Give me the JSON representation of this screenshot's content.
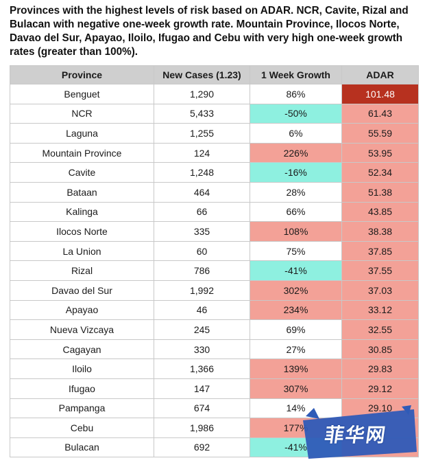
{
  "title": "Provinces with the highest levels of risk based on ADAR. NCR, Cavite, Rizal and Bulacan with negative one-week growth rate. Mountain Province, Ilocos Norte, Davao del Sur, Apayao, Iloilo, Ifugao and Cebu with very high one-week growth rates (greater than 100%).",
  "table": {
    "headers": [
      "Province",
      "New Cases (1.23)",
      "1 Week Growth",
      "ADAR"
    ],
    "rows": [
      {
        "province": "Benguet",
        "cases": "1,290",
        "growth": "86%",
        "adar": "101.48",
        "growth_level": "neutral",
        "adar_level": "very_high"
      },
      {
        "province": "NCR",
        "cases": "5,433",
        "growth": "-50%",
        "adar": "61.43",
        "growth_level": "negative",
        "adar_level": "high"
      },
      {
        "province": "Laguna",
        "cases": "1,255",
        "growth": "6%",
        "adar": "55.59",
        "growth_level": "neutral",
        "adar_level": "high"
      },
      {
        "province": "Mountain Province",
        "cases": "124",
        "growth": "226%",
        "adar": "53.95",
        "growth_level": "high",
        "adar_level": "high"
      },
      {
        "province": "Cavite",
        "cases": "1,248",
        "growth": "-16%",
        "adar": "52.34",
        "growth_level": "negative",
        "adar_level": "high"
      },
      {
        "province": "Bataan",
        "cases": "464",
        "growth": "28%",
        "adar": "51.38",
        "growth_level": "neutral",
        "adar_level": "high"
      },
      {
        "province": "Kalinga",
        "cases": "66",
        "growth": "66%",
        "adar": "43.85",
        "growth_level": "neutral",
        "adar_level": "high"
      },
      {
        "province": "Ilocos Norte",
        "cases": "335",
        "growth": "108%",
        "adar": "38.38",
        "growth_level": "high",
        "adar_level": "high"
      },
      {
        "province": "La Union",
        "cases": "60",
        "growth": "75%",
        "adar": "37.85",
        "growth_level": "neutral",
        "adar_level": "high"
      },
      {
        "province": "Rizal",
        "cases": "786",
        "growth": "-41%",
        "adar": "37.55",
        "growth_level": "negative",
        "adar_level": "high"
      },
      {
        "province": "Davao del Sur",
        "cases": "1,992",
        "growth": "302%",
        "adar": "37.03",
        "growth_level": "high",
        "adar_level": "high"
      },
      {
        "province": "Apayao",
        "cases": "46",
        "growth": "234%",
        "adar": "33.12",
        "growth_level": "high",
        "adar_level": "high"
      },
      {
        "province": "Nueva Vizcaya",
        "cases": "245",
        "growth": "69%",
        "adar": "32.55",
        "growth_level": "neutral",
        "adar_level": "high"
      },
      {
        "province": "Cagayan",
        "cases": "330",
        "growth": "27%",
        "adar": "30.85",
        "growth_level": "neutral",
        "adar_level": "high"
      },
      {
        "province": "Iloilo",
        "cases": "1,366",
        "growth": "139%",
        "adar": "29.83",
        "growth_level": "high",
        "adar_level": "high"
      },
      {
        "province": "Ifugao",
        "cases": "147",
        "growth": "307%",
        "adar": "29.12",
        "growth_level": "high",
        "adar_level": "high"
      },
      {
        "province": "Pampanga",
        "cases": "674",
        "growth": "14%",
        "adar": "29.10",
        "growth_level": "neutral",
        "adar_level": "high"
      },
      {
        "province": "Cebu",
        "cases": "1,986",
        "growth": "177%",
        "adar": "",
        "growth_level": "high",
        "adar_level": "high"
      },
      {
        "province": "Bulacan",
        "cases": "692",
        "growth": "-41%",
        "adar": "",
        "growth_level": "negative",
        "adar_level": "high"
      }
    ]
  },
  "colors": {
    "neutral": "#ffffff",
    "negative": "#8ef0e0",
    "high": "#f3a197",
    "very_high": "#b7311f",
    "very_high_text": "#ffffff",
    "header_bg": "#cfcfcf"
  },
  "watermark": {
    "text": "菲华网"
  }
}
